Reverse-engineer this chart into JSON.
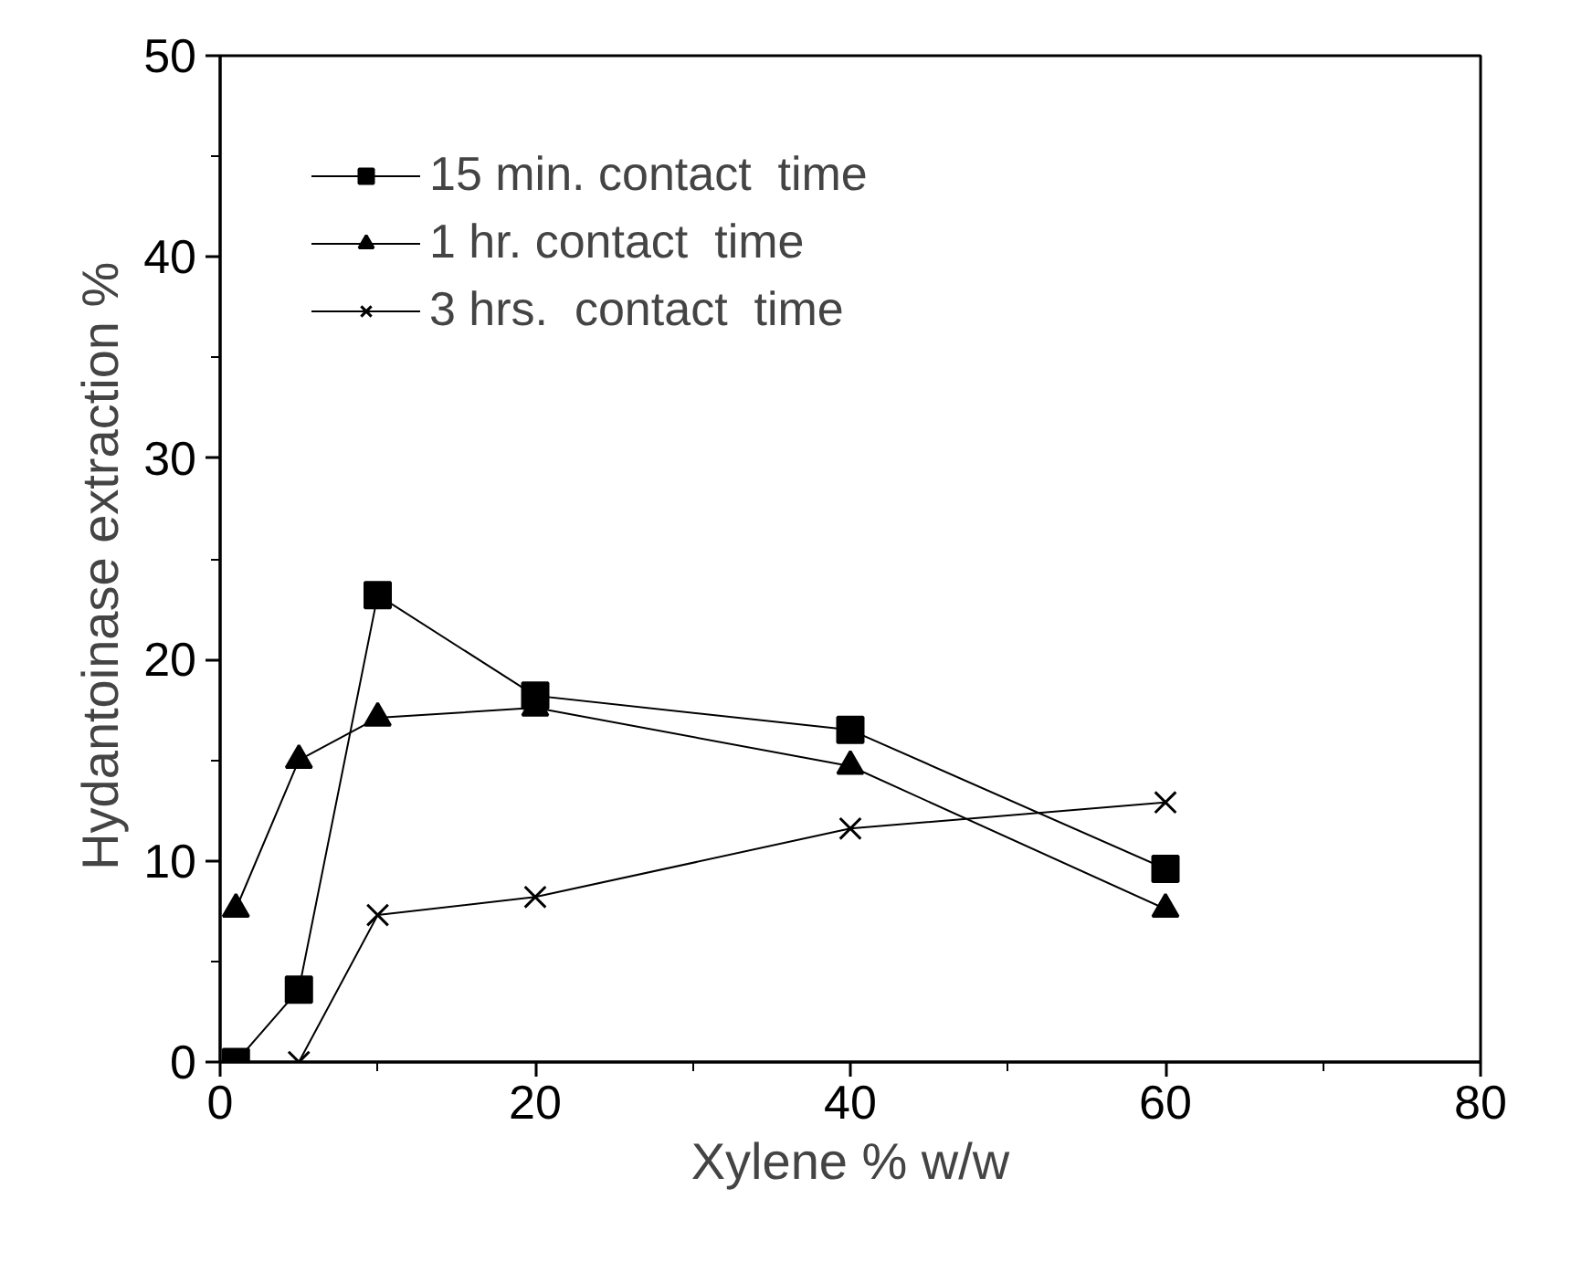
{
  "chart_data": {
    "type": "line",
    "xlabel": "Xylene % w/w",
    "ylabel": "Hydantoinase  extraction %",
    "x": [
      1,
      5,
      10,
      20,
      40,
      60
    ],
    "series": [
      {
        "name": "15 min. contact  time",
        "color": "#000000",
        "marker": "square",
        "values": [
          0,
          3.6,
          23.2,
          18.2,
          16.5,
          9.6
        ]
      },
      {
        "name": "1 hr. contact  time",
        "color": "#000000",
        "marker": "triangle",
        "values": [
          7.6,
          15,
          17.1,
          17.6,
          14.7,
          7.6
        ]
      },
      {
        "name": "3 hrs.  contact  time",
        "color": "#000000",
        "marker": "cross",
        "values": [
          0,
          0,
          7.3,
          8.2,
          11.6,
          12.9
        ]
      }
    ],
    "xlim": [
      0,
      80
    ],
    "ylim": [
      0,
      50
    ],
    "xticks": [
      0,
      20,
      40,
      60,
      80
    ],
    "yticks": [
      0,
      10,
      20,
      30,
      40,
      50
    ],
    "grid": false,
    "legend": "top left",
    "line_style": "solid"
  }
}
